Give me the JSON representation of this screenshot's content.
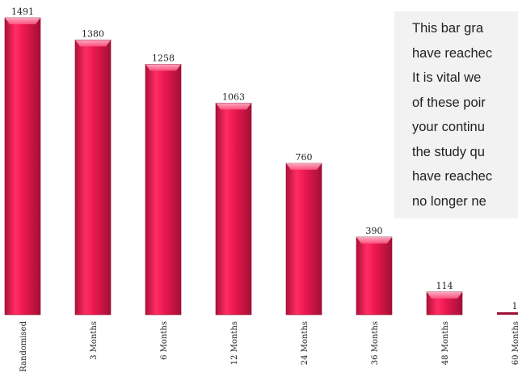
{
  "chart_data": {
    "type": "bar",
    "categories": [
      "Randomised",
      "3 Months",
      "6 Months",
      "12 Months",
      "24 Months",
      "36 Months",
      "48 Months",
      "60 Months"
    ],
    "values": [
      1491,
      1380,
      1258,
      1063,
      760,
      390,
      114,
      1
    ],
    "title": "",
    "xlabel": "",
    "ylabel": "",
    "ylim": [
      0,
      1491
    ],
    "grid": false,
    "legend": "none",
    "bar_color": "#e8174f",
    "bar_color_low": "#9c1134",
    "bar_highlight": "#ff9bb8"
  },
  "text_panel": {
    "lines": [
      "This bar gra",
      "have reachec",
      "It is vital we",
      "of these poir",
      "your continu",
      "the study qu",
      "have reachec",
      "no longer ne"
    ]
  }
}
